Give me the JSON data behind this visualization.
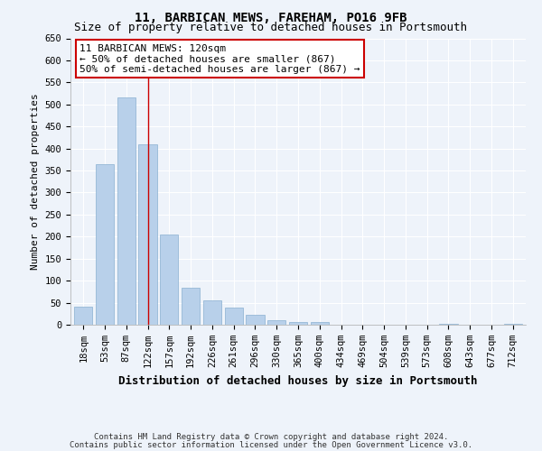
{
  "title1": "11, BARBICAN MEWS, FAREHAM, PO16 9FB",
  "title2": "Size of property relative to detached houses in Portsmouth",
  "xlabel": "Distribution of detached houses by size in Portsmouth",
  "ylabel": "Number of detached properties",
  "bar_labels": [
    "18sqm",
    "53sqm",
    "87sqm",
    "122sqm",
    "157sqm",
    "192sqm",
    "226sqm",
    "261sqm",
    "296sqm",
    "330sqm",
    "365sqm",
    "400sqm",
    "434sqm",
    "469sqm",
    "504sqm",
    "539sqm",
    "573sqm",
    "608sqm",
    "643sqm",
    "677sqm",
    "712sqm"
  ],
  "bar_values": [
    40,
    365,
    515,
    410,
    205,
    83,
    55,
    38,
    22,
    10,
    6,
    7,
    1,
    0,
    0,
    0,
    0,
    3,
    0,
    0,
    3
  ],
  "bar_color": "#b8d0ea",
  "bar_edge_color": "#8ab0d0",
  "vline_x": 3,
  "vline_color": "#cc0000",
  "annotation_text": "11 BARBICAN MEWS: 120sqm\n← 50% of detached houses are smaller (867)\n50% of semi-detached houses are larger (867) →",
  "annotation_box_facecolor": "#ffffff",
  "annotation_box_edgecolor": "#cc0000",
  "ylim_max": 650,
  "yticks": [
    0,
    50,
    100,
    150,
    200,
    250,
    300,
    350,
    400,
    450,
    500,
    550,
    600,
    650
  ],
  "footnote1": "Contains HM Land Registry data © Crown copyright and database right 2024.",
  "footnote2": "Contains public sector information licensed under the Open Government Licence v3.0.",
  "bg_color": "#eef3fa",
  "grid_color": "#ffffff",
  "title1_fontsize": 10,
  "title2_fontsize": 9,
  "ylabel_fontsize": 8,
  "xlabel_fontsize": 9,
  "tick_fontsize": 7.5,
  "annotation_fontsize": 8,
  "footnote_fontsize": 6.5
}
